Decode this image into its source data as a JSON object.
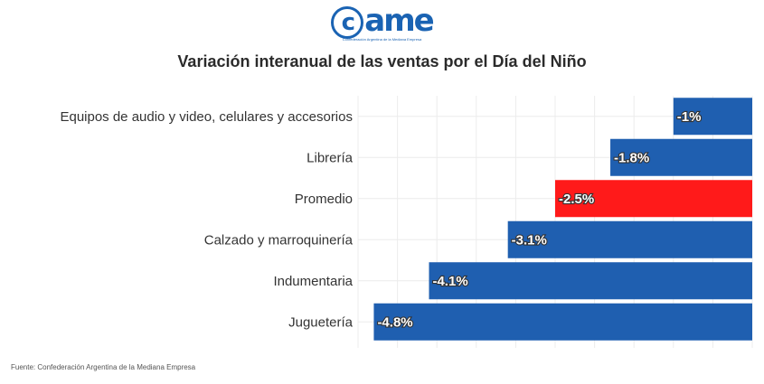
{
  "logo": {
    "mark_c": "c",
    "mark_rest": "ame",
    "subtitle": "Confederación Argentina de la Mediana Empresa"
  },
  "title": "Variación interanual de las ventas por el Día del Niño",
  "source": "Fuente: Confederación Argentina de la Mediana Empresa",
  "colors": {
    "bar": "#1f5fb0",
    "highlight": "#ff1a1a"
  },
  "chart_data": {
    "type": "bar",
    "orientation": "horizontal",
    "title": "Variación interanual de las ventas por el Día del Niño",
    "categories": [
      "Equipos de audio y video, celulares y accesorios",
      "Librería",
      "Promedio",
      "Calzado y marroquinería",
      "Indumentaria",
      "Juguetería"
    ],
    "values": [
      -1,
      -1.8,
      -2.5,
      -3.1,
      -4.1,
      -4.8
    ],
    "value_labels": [
      "-1%",
      "-1.8%",
      "-2.5%",
      "-3.1%",
      "-4.1%",
      "-4.8%"
    ],
    "highlight_category": "Promedio",
    "xlim": [
      -5,
      0
    ],
    "grid": true,
    "xlabel": "",
    "ylabel": ""
  }
}
